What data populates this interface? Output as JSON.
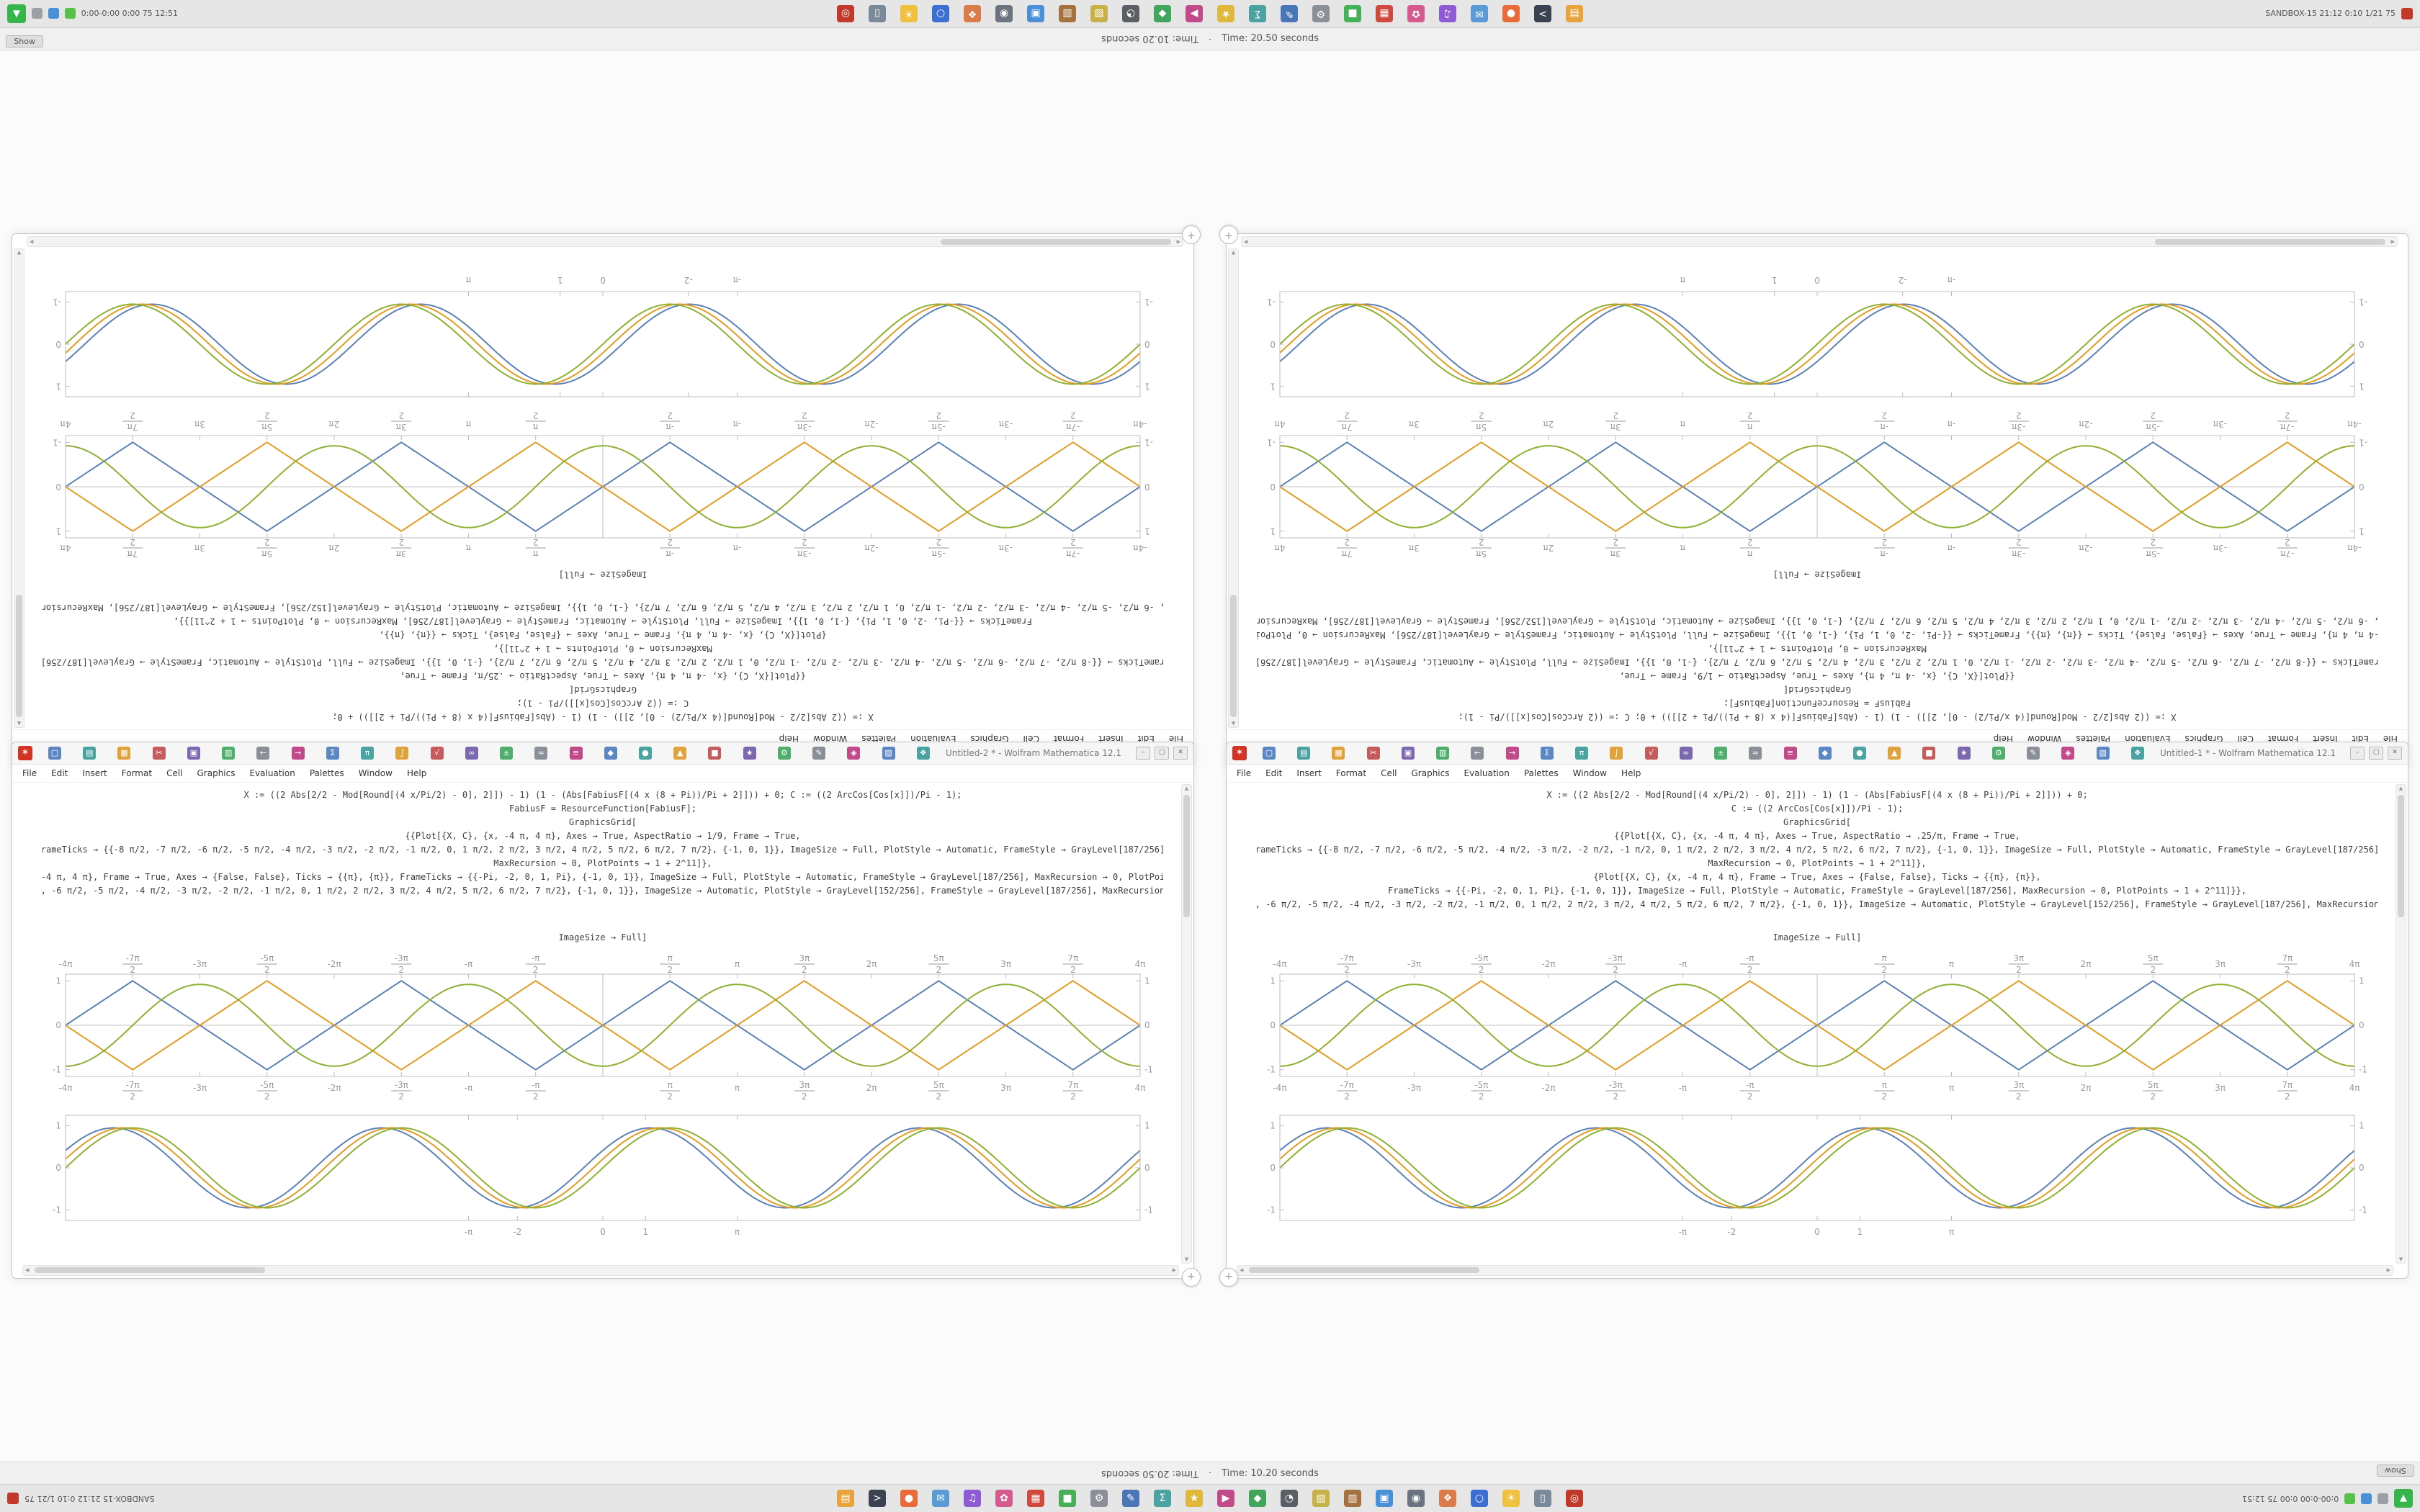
{
  "status": {
    "time_alt": "Time: 20.50 seconds",
    "sep": "·",
    "time": "Time: 10.20 seconds",
    "show_tab": "Show"
  },
  "taskbar_bar": {
    "left_label": "SANDBOX-15  21:12  0:10  1/21  75",
    "right_label": "0:00-0:00  0:00  75  12:51",
    "badge_glyph": "▲",
    "icons": [
      {
        "name": "files-icon",
        "g": "▤",
        "c": "#e8a33d"
      },
      {
        "name": "terminal-icon",
        "g": ">",
        "c": "#3b4252"
      },
      {
        "name": "browser-icon",
        "g": "●",
        "c": "#e96b3a"
      },
      {
        "name": "mail-icon",
        "g": "✉",
        "c": "#5b9bd5"
      },
      {
        "name": "music-icon",
        "g": "♫",
        "c": "#8e5bd5"
      },
      {
        "name": "photos-icon",
        "g": "✿",
        "c": "#d55b8e"
      },
      {
        "name": "calendar-icon",
        "g": "▦",
        "c": "#d0493e"
      },
      {
        "name": "chat-icon",
        "g": "■",
        "c": "#45b058"
      },
      {
        "name": "settings-icon",
        "g": "⚙",
        "c": "#8a8f98"
      },
      {
        "name": "editor-icon",
        "g": "✎",
        "c": "#4a76b8"
      },
      {
        "name": "calculator-icon",
        "g": "Σ",
        "c": "#4aa3a0"
      },
      {
        "name": "store-icon",
        "g": "★",
        "c": "#e0b93c"
      },
      {
        "name": "video-icon",
        "g": "▶",
        "c": "#c24a8b"
      },
      {
        "name": "maps-icon",
        "g": "◆",
        "c": "#3fa65c"
      },
      {
        "name": "clock-icon",
        "g": "◔",
        "c": "#5a5f66"
      },
      {
        "name": "notes-icon",
        "g": "▧",
        "c": "#c7b24a"
      },
      {
        "name": "archive-icon",
        "g": "▥",
        "c": "#a4713f"
      },
      {
        "name": "monitor-icon",
        "g": "▣",
        "c": "#4a90d9"
      },
      {
        "name": "camera-icon",
        "g": "◉",
        "c": "#6b7280"
      },
      {
        "name": "paint-icon",
        "g": "❖",
        "c": "#d97b4a"
      },
      {
        "name": "search-icon",
        "g": "○",
        "c": "#3c6fd1"
      },
      {
        "name": "weather-icon",
        "g": "☀",
        "c": "#f0c040"
      },
      {
        "name": "trash-icon",
        "g": "▯",
        "c": "#7a8a99"
      },
      {
        "name": "power-icon",
        "g": "◎",
        "c": "#c0392b"
      }
    ]
  },
  "menu": [
    "File",
    "Edit",
    "Insert",
    "Format",
    "Cell",
    "Graphics",
    "Evaluation",
    "Palettes",
    "Window",
    "Help"
  ],
  "notebook_toolbar": [
    {
      "name": "new-cell-icon",
      "g": "▢",
      "c": "#5b87c5"
    },
    {
      "name": "open-icon",
      "g": "▤",
      "c": "#4aa3a0"
    },
    {
      "name": "save-icon",
      "g": "▦",
      "c": "#e0a33c"
    },
    {
      "name": "cut-icon",
      "g": "✂",
      "c": "#c65b5b"
    },
    {
      "name": "copy-icon",
      "g": "▣",
      "c": "#7b68ae"
    },
    {
      "name": "paste-icon",
      "g": "▥",
      "c": "#4fae6b"
    },
    {
      "name": "undo-icon",
      "g": "←",
      "c": "#8a8f98"
    },
    {
      "name": "redo-icon",
      "g": "→",
      "c": "#c24a8b"
    },
    {
      "name": "sum-icon",
      "g": "Σ",
      "c": "#5b87c5"
    },
    {
      "name": "pi-icon",
      "g": "π",
      "c": "#4aa3a0"
    },
    {
      "name": "integral-icon",
      "g": "∫",
      "c": "#e0a33c"
    },
    {
      "name": "sqrt-icon",
      "g": "√",
      "c": "#c65b5b"
    },
    {
      "name": "infinity-icon",
      "g": "∞",
      "c": "#7b68ae"
    },
    {
      "name": "plusminus-icon",
      "g": "±",
      "c": "#4fae6b"
    },
    {
      "name": "approx-icon",
      "g": "≈",
      "c": "#8a8f98"
    },
    {
      "name": "identity-icon",
      "g": "≡",
      "c": "#c24a8b"
    },
    {
      "name": "diamond-icon",
      "g": "◆",
      "c": "#5b87c5"
    },
    {
      "name": "dot-icon",
      "g": "●",
      "c": "#4aa3a0"
    },
    {
      "name": "triangle-icon",
      "g": "▲",
      "c": "#e0a33c"
    },
    {
      "name": "square-icon",
      "g": "■",
      "c": "#c65b5b"
    },
    {
      "name": "star-icon",
      "g": "★",
      "c": "#7b68ae"
    },
    {
      "name": "gear-icon",
      "g": "⚙",
      "c": "#4fae6b"
    },
    {
      "name": "edit-icon",
      "g": "✎",
      "c": "#8a8f98"
    },
    {
      "name": "lozenge-icon",
      "g": "◈",
      "c": "#c24a8b"
    },
    {
      "name": "grid-icon",
      "g": "▧",
      "c": "#5b87c5"
    },
    {
      "name": "florette-icon",
      "g": "❖",
      "c": "#4aa3a0"
    }
  ],
  "window_chrome": {
    "logo": "✶",
    "min": "–",
    "max": "▢",
    "close": "✕",
    "assistant": "+",
    "scroll_up": "▲",
    "scroll_down": "▼",
    "scroll_left": "◀",
    "scroll_right": "▶"
  },
  "window_left": {
    "title": "Untitled-2 * - Wolfram Mathematica 12.1",
    "caption": "ImageSize → Full]",
    "code_lines": [
      "X := ((2 Abs[2/2 - Mod[Round[(4 x/Pi/2) - 0], 2]]) - 1) (1 - (Abs[FabiusF[(4 x (8 + Pi))/Pi + 2]])) + 0;   C := ((2 ArcCos[Cos[x]])/Pi - 1);",
      "FabiusF = ResourceFunction[FabiusF];",
      "GraphicsGrid[",
      "{{Plot[{X, C}, {x, -4 π, 4 π}, Axes → True, AspectRatio → 1/9, Frame → True,",
      "FrameTicks → {{-8 π/2, -7 π/2, -6 π/2, -5 π/2, -4 π/2, -3 π/2, -2 π/2, -1 π/2, 0, 1 π/2, 2 π/2, 3 π/2, 4 π/2, 5 π/2, 6 π/2, 7 π/2}, {-1, 0, 1}}, ImageSize → Full, PlotStyle → Automatic, FrameStyle → GrayLevel[187/256],",
      "MaxRecursion → 0, PlotPoints → 1 + 2^11]},",
      "{Plot[{X, C}, {x, -4 π, 4 π}, Frame → True, Axes → {False, False}, Ticks → {{π}, {π}}, FrameTicks → {{-Pi, -2, 0, 1, Pi}, {-1, 0, 1}}, ImageSize → Full, PlotStyle → Automatic, FrameStyle → GrayLevel[187/256], MaxRecursion → 0, PlotPoints → 1 + 2^11]}},",
      "FrameTicks → {{-8 π/2, -7 π/2, -6 π/2, -5 π/2, -4 π/2, -3 π/2, -2 π/2, -1 π/2, 0, 1 π/2, 2 π/2, 3 π/2, 4 π/2, 5 π/2, 6 π/2, 7 π/2}, {-1, 0, 1}}, ImageSize → Automatic, PlotStyle → GrayLevel[152/256], FrameStyle → GrayLevel[187/256], MaxRecursion → 0, PlotPoints → 1 + 2^11]]"
    ]
  },
  "window_right": {
    "title": "Untitled-1 * - Wolfram Mathematica 12.1",
    "caption": "ImageSize → Full]",
    "code_lines": [
      "X := ((2 Abs[2/2 - Mod[Round[(4 x/Pi/2) - 0], 2]]) - 1) (1 - (Abs[FabiusF[(4 x (8 + Pi))/Pi + 2]])) + 0;",
      "C := ((2 ArcCos[Cos[x]])/Pi - 1);",
      "GraphicsGrid[",
      "{{Plot[{X, C}, {x, -4 π, 4 π}, Axes → True, AspectRatio → .25/π, Frame → True,",
      "FrameTicks → {{-8 π/2, -7 π/2, -6 π/2, -5 π/2, -4 π/2, -3 π/2, -2 π/2, -1 π/2, 0, 1 π/2, 2 π/2, 3 π/2, 4 π/2, 5 π/2, 6 π/2, 7 π/2}, {-1, 0, 1}}, ImageSize → Full, PlotStyle → Automatic, FrameStyle → GrayLevel[187/256],",
      "MaxRecursion → 0, PlotPoints → 1 + 2^11]},",
      "{Plot[{X, C}, {x, -4 π, 4 π}, Frame → True, Axes → {False, False}, Ticks → {{π}, {π}},",
      "FrameTicks → {{-Pi, -2, 0, 1, Pi}, {-1, 0, 1}}, ImageSize → Full, PlotStyle → Automatic, FrameStyle → GrayLevel[187/256], MaxRecursion → 0, PlotPoints → 1 + 2^11]}},",
      "FrameTicks → {{-8 π/2, -7 π/2, -6 π/2, -5 π/2, -4 π/2, -3 π/2, -2 π/2, -1 π/2, 0, 1 π/2, 2 π/2, 3 π/2, 4 π/2, 5 π/2, 6 π/2, 7 π/2}, {-1, 0, 1}}, ImageSize → Automatic, PlotStyle → GrayLevel[152/256], FrameStyle → GrayLevel[187/256], MaxRecursion → 0, PlotPoints → 1 + 2^11]]"
    ]
  },
  "chart_data": {
    "plotA": {
      "type": "line",
      "x_range": [
        -12.566,
        12.566
      ],
      "y_range": [
        -1.15,
        1.15
      ],
      "frame_h": 142,
      "frame": true,
      "axes": true,
      "labels_top": true,
      "labels_bottom": true,
      "xticks": [
        {
          "v": -12.566,
          "l": "-4π"
        },
        {
          "v": -10.996,
          "l": "-7π/2"
        },
        {
          "v": -9.4248,
          "l": "-3π"
        },
        {
          "v": -7.854,
          "l": "-5π/2"
        },
        {
          "v": -6.2832,
          "l": "-2π"
        },
        {
          "v": -4.7124,
          "l": "-3π/2"
        },
        {
          "v": -3.1416,
          "l": "-π"
        },
        {
          "v": -1.5708,
          "l": "-π/2"
        },
        {
          "v": 0,
          "l": ""
        },
        {
          "v": 1.5708,
          "l": "π/2"
        },
        {
          "v": 3.1416,
          "l": "π"
        },
        {
          "v": 4.7124,
          "l": "3π/2"
        },
        {
          "v": 6.2832,
          "l": "2π"
        },
        {
          "v": 7.854,
          "l": "5π/2"
        },
        {
          "v": 9.4248,
          "l": "3π"
        },
        {
          "v": 10.996,
          "l": "7π/2"
        },
        {
          "v": 12.566,
          "l": "4π"
        }
      ],
      "yticks": [
        {
          "v": 1,
          "l": "1"
        },
        {
          "v": 0,
          "l": "0"
        },
        {
          "v": -1,
          "l": "-1"
        }
      ],
      "series": [
        {
          "name": "triangle-wave-X",
          "kind": "tri",
          "phase": 0,
          "amp": 1,
          "color": "#5e81b5"
        },
        {
          "name": "triangle-wave-inverted",
          "kind": "tri",
          "phase": 3.1416,
          "amp": 1,
          "color": "#e19c24"
        },
        {
          "name": "smooth-wave-C",
          "kind": "sin",
          "phase": -1.5708,
          "amp": 0.92,
          "color": "#8fb032"
        }
      ]
    },
    "plotB": {
      "type": "line",
      "x_range": [
        -12.566,
        12.566
      ],
      "y_range": [
        -1.25,
        1.25
      ],
      "frame_h": 146,
      "frame": true,
      "axes": false,
      "labels_top": false,
      "labels_bottom": true,
      "xticks": [
        {
          "v": -3.1416,
          "l": "-π"
        },
        {
          "v": -2,
          "l": "-2"
        },
        {
          "v": 0,
          "l": "0"
        },
        {
          "v": 1,
          "l": "1"
        },
        {
          "v": 3.1416,
          "l": "π"
        }
      ],
      "yticks": [
        {
          "v": 1,
          "l": "1"
        },
        {
          "v": 0,
          "l": "0"
        },
        {
          "v": -1,
          "l": "-1"
        }
      ],
      "series": [
        {
          "name": "sine-1",
          "kind": "sin",
          "phase": 0.45,
          "amp": 0.95,
          "color": "#5e81b5"
        },
        {
          "name": "sine-2",
          "kind": "sin",
          "phase": 0.22,
          "amp": 0.95,
          "color": "#e19c24"
        },
        {
          "name": "sine-3",
          "kind": "sin",
          "phase": 0,
          "amp": 0.95,
          "color": "#8fb032"
        }
      ]
    }
  }
}
